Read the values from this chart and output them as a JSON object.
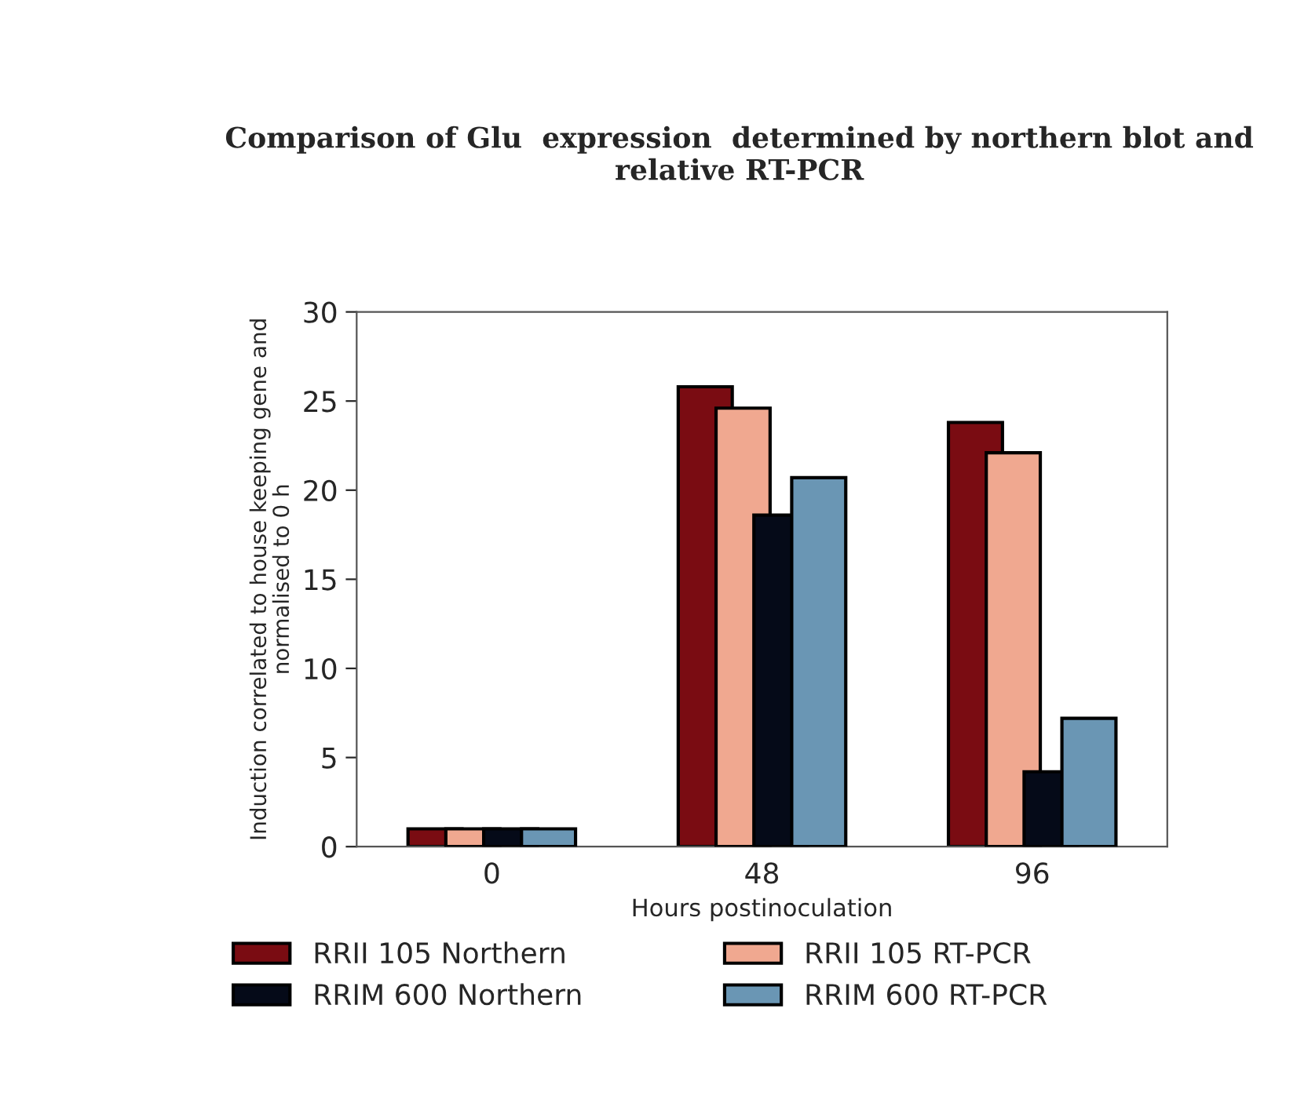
{
  "chart_data": {
    "type": "bar",
    "title": "Comparison of Glu  expression  determined by northern blot and relative RT-PCR",
    "xlabel": "Hours postinoculation",
    "ylabel": "Induction correlated to house keeping gene and\nnormalised to 0 h",
    "categories": [
      "0",
      "48",
      "96"
    ],
    "series": [
      {
        "name": "RRII 105 Northern",
        "color": "#7a0c12",
        "values": [
          1,
          25.8,
          23.8
        ]
      },
      {
        "name": "RRII 105 RT-PCR",
        "color": "#f0a890",
        "values": [
          1,
          24.6,
          22.1
        ]
      },
      {
        "name": "RRIM 600 Northern",
        "color": "#050a18",
        "values": [
          1,
          18.6,
          4.2
        ]
      },
      {
        "name": "RRIM 600 RT-PCR",
        "color": "#6a96b4",
        "values": [
          1,
          20.7,
          7.2
        ]
      }
    ],
    "ylim": [
      0,
      30
    ],
    "yticks": [
      0,
      5,
      10,
      15,
      20,
      25,
      30
    ],
    "grid": false,
    "legend": "bottom"
  }
}
